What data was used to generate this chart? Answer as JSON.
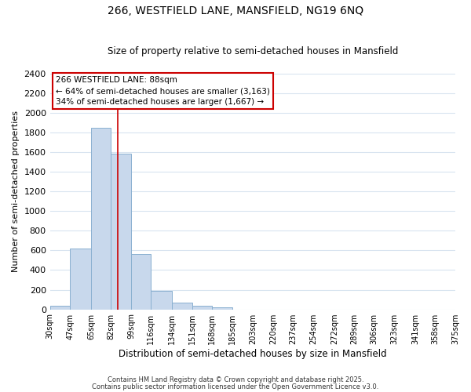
{
  "title": "266, WESTFIELD LANE, MANSFIELD, NG19 6NQ",
  "subtitle": "Size of property relative to semi-detached houses in Mansfield",
  "xlabel": "Distribution of semi-detached houses by size in Mansfield",
  "ylabel": "Number of semi-detached properties",
  "bar_edges": [
    30,
    47,
    65,
    82,
    99,
    116,
    134,
    151,
    168,
    185,
    203,
    220,
    237,
    254,
    272,
    289,
    306,
    323,
    341,
    358,
    375
  ],
  "bar_heights": [
    35,
    620,
    1850,
    1585,
    560,
    185,
    70,
    35,
    20,
    0,
    0,
    0,
    0,
    0,
    0,
    0,
    0,
    0,
    0,
    0
  ],
  "tick_labels": [
    "30sqm",
    "47sqm",
    "65sqm",
    "82sqm",
    "99sqm",
    "116sqm",
    "134sqm",
    "151sqm",
    "168sqm",
    "185sqm",
    "203sqm",
    "220sqm",
    "237sqm",
    "254sqm",
    "272sqm",
    "289sqm",
    "306sqm",
    "323sqm",
    "341sqm",
    "358sqm",
    "375sqm"
  ],
  "bar_color": "#c8d8ec",
  "bar_edge_color": "#8ab0d0",
  "vline_x": 88,
  "vline_color": "#cc0000",
  "annotation_title": "266 WESTFIELD LANE: 88sqm",
  "annotation_line2": "← 64% of semi-detached houses are smaller (3,163)",
  "annotation_line3": "34% of semi-detached houses are larger (1,667) →",
  "ylim": [
    0,
    2400
  ],
  "yticks": [
    0,
    200,
    400,
    600,
    800,
    1000,
    1200,
    1400,
    1600,
    1800,
    2000,
    2200,
    2400
  ],
  "footer_line1": "Contains HM Land Registry data © Crown copyright and database right 2025.",
  "footer_line2": "Contains public sector information licensed under the Open Government Licence v3.0.",
  "bg_color": "#ffffff",
  "grid_color": "#d8e4f0"
}
